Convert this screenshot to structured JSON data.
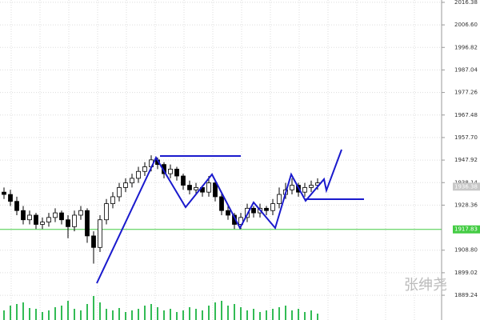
{
  "chart_data": {
    "type": "candlestick",
    "ylim": [
      1878.5,
      2017.4
    ],
    "yticks": [
      2016.38,
      {
        "value": 2006.6,
        "label": "2006.60"
      },
      1996.82,
      1987.04,
      1977.26,
      1967.48,
      {
        "value": 1957.7,
        "label": "1957.70"
      },
      1947.92,
      1938.14,
      1928.36,
      {
        "value": 1908.8,
        "label": "1908.80"
      },
      1899.02,
      1889.24
    ],
    "grid": true,
    "up_color": "#ffffff",
    "down_color": "#000000",
    "volume_color": "#33bb55",
    "ohlc": [
      [
        1934,
        1936,
        1931,
        1933
      ],
      [
        1933,
        1935,
        1928,
        1930
      ],
      [
        1930,
        1932,
        1924,
        1926
      ],
      [
        1926,
        1928,
        1920,
        1922
      ],
      [
        1922,
        1926,
        1920,
        1924
      ],
      [
        1924,
        1925,
        1918,
        1920
      ],
      [
        1920,
        1923,
        1918,
        1921
      ],
      [
        1921,
        1925,
        1919,
        1923
      ],
      [
        1923,
        1927,
        1921,
        1925
      ],
      [
        1925,
        1926,
        1920,
        1922
      ],
      [
        1922,
        1924,
        1914,
        1919
      ],
      [
        1919,
        1926,
        1917,
        1924
      ],
      [
        1924,
        1928,
        1922,
        1926
      ],
      [
        1926,
        1927,
        1912,
        1915
      ],
      [
        1915,
        1917,
        1903,
        1910
      ],
      [
        1910,
        1924,
        1908,
        1922
      ],
      [
        1922,
        1931,
        1920,
        1929
      ],
      [
        1929,
        1934,
        1927,
        1932
      ],
      [
        1932,
        1938,
        1930,
        1936
      ],
      [
        1936,
        1940,
        1934,
        1938
      ],
      [
        1938,
        1942,
        1936,
        1940
      ],
      [
        1940,
        1945,
        1938,
        1943
      ],
      [
        1943,
        1947,
        1941,
        1945
      ],
      [
        1945,
        1950,
        1943,
        1948
      ],
      [
        1948,
        1949,
        1944,
        1946
      ],
      [
        1946,
        1947,
        1940,
        1942
      ],
      [
        1942,
        1946,
        1940,
        1944
      ],
      [
        1944,
        1945,
        1939,
        1941
      ],
      [
        1941,
        1942,
        1935,
        1937
      ],
      [
        1937,
        1939,
        1933,
        1935
      ],
      [
        1935,
        1938,
        1933,
        1936
      ],
      [
        1936,
        1937,
        1932,
        1934
      ],
      [
        1934,
        1941,
        1932,
        1938
      ],
      [
        1938,
        1939,
        1930,
        1932
      ],
      [
        1932,
        1934,
        1924,
        1926
      ],
      [
        1926,
        1928,
        1922,
        1924
      ],
      [
        1924,
        1925,
        1918,
        1920
      ],
      [
        1920,
        1925,
        1918,
        1923
      ],
      [
        1923,
        1929,
        1921,
        1927
      ],
      [
        1927,
        1928,
        1923,
        1925
      ],
      [
        1925,
        1929,
        1923,
        1927
      ],
      [
        1927,
        1928,
        1924,
        1926
      ],
      [
        1926,
        1931,
        1924,
        1929
      ],
      [
        1929,
        1936,
        1927,
        1933
      ],
      [
        1933,
        1938,
        1931,
        1935
      ],
      [
        1935,
        1940,
        1933,
        1937
      ],
      [
        1937,
        1938,
        1932,
        1934
      ],
      [
        1934,
        1938,
        1932,
        1936
      ],
      [
        1936,
        1939,
        1934,
        1937
      ],
      [
        1937,
        1940,
        1935,
        1938
      ]
    ],
    "volumes": [
      12,
      18,
      20,
      22,
      15,
      14,
      10,
      12,
      16,
      18,
      24,
      14,
      12,
      20,
      30,
      22,
      14,
      12,
      15,
      10,
      12,
      14,
      18,
      20,
      16,
      12,
      14,
      10,
      12,
      16,
      14,
      12,
      18,
      22,
      24,
      18,
      20,
      16,
      12,
      14,
      10,
      12,
      14,
      16,
      18,
      12,
      14,
      10,
      12,
      8
    ],
    "current_price": {
      "value": 1936.38,
      "label": "1936.38"
    },
    "level_line": {
      "value": 1917.83,
      "label": "1917.83",
      "color": "#44cc44"
    },
    "watermark": "张绅尧"
  }
}
